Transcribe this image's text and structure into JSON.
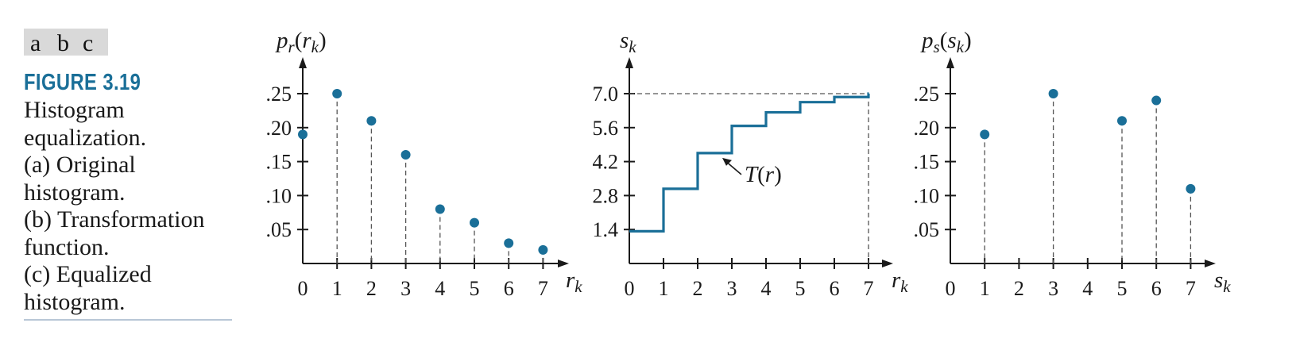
{
  "figure": {
    "panel_labels": [
      "a",
      "b",
      "c"
    ],
    "number": "FIGURE 3.19",
    "caption_lines": [
      "Histogram",
      "equalization.",
      "(a) Original",
      "histogram.",
      "(b) Transformation",
      "function.",
      "(c) Equalized",
      "histogram."
    ]
  },
  "colors": {
    "accent": "#1a6f98",
    "axis": "#1a1a1a",
    "dash": "#555555"
  },
  "chart_data": [
    {
      "type": "scatter",
      "style": "stem",
      "ylabel": {
        "main": "p",
        "sub": "r",
        "paren_open": "(",
        "inner": "r",
        "inner_sub": "k",
        "paren_close": ")"
      },
      "xlabel": {
        "main": "r",
        "sub": "k"
      },
      "x_ticks": [
        "0",
        "1",
        "2",
        "3",
        "4",
        "5",
        "6",
        "7"
      ],
      "y_ticks": [
        ".05",
        ".10",
        ".15",
        ".20",
        ".25"
      ],
      "xlim": [
        0,
        7
      ],
      "ylim": [
        0,
        0.25
      ],
      "x": [
        0,
        1,
        2,
        3,
        4,
        5,
        6,
        7
      ],
      "values": [
        0.19,
        0.25,
        0.21,
        0.16,
        0.08,
        0.06,
        0.03,
        0.02
      ]
    },
    {
      "type": "line",
      "style": "step",
      "ylabel": {
        "main": "s",
        "sub": "k"
      },
      "xlabel": {
        "main": "r",
        "sub": "k"
      },
      "x_ticks": [
        "0",
        "1",
        "2",
        "3",
        "4",
        "5",
        "6",
        "7"
      ],
      "y_ticks": [
        "1.4",
        "2.8",
        "4.2",
        "5.6",
        "7.0"
      ],
      "xlim": [
        0,
        7
      ],
      "ylim": [
        0,
        7.0
      ],
      "x": [
        0,
        1,
        2,
        3,
        4,
        5,
        6,
        7
      ],
      "values": [
        1.33,
        3.08,
        4.55,
        5.67,
        6.23,
        6.65,
        6.86,
        7.0
      ],
      "annotation": {
        "text": "T",
        "paren_open": "(",
        "arg": "r",
        "paren_close": ")"
      }
    },
    {
      "type": "scatter",
      "style": "stem",
      "ylabel": {
        "main": "p",
        "sub": "s",
        "paren_open": "(",
        "inner": "s",
        "inner_sub": "k",
        "paren_close": ")"
      },
      "xlabel": {
        "main": "s",
        "sub": "k"
      },
      "x_ticks": [
        "0",
        "1",
        "2",
        "3",
        "4",
        "5",
        "6",
        "7"
      ],
      "y_ticks": [
        ".05",
        ".10",
        ".15",
        ".20",
        ".25"
      ],
      "xlim": [
        0,
        7
      ],
      "ylim": [
        0,
        0.25
      ],
      "x": [
        1,
        3,
        5,
        6,
        7
      ],
      "values": [
        0.19,
        0.25,
        0.21,
        0.24,
        0.11
      ]
    }
  ]
}
